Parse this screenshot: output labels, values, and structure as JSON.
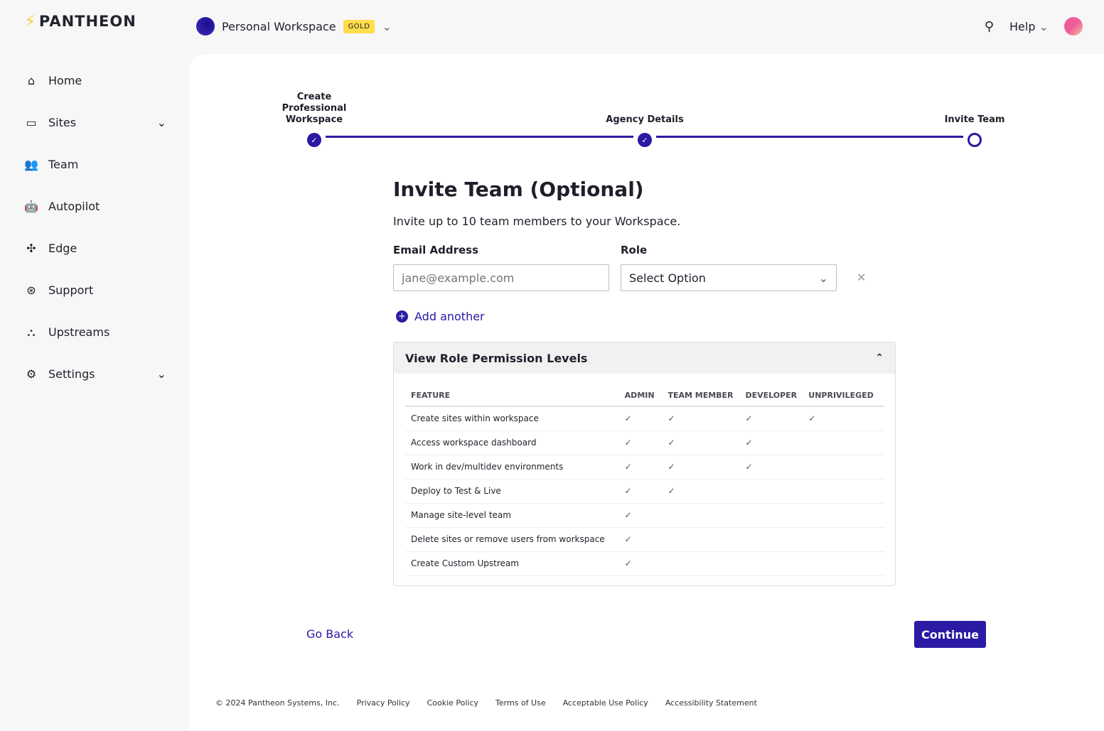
{
  "brand": {
    "name": "PANTHEON"
  },
  "workspace": {
    "name": "Personal Workspace",
    "badge": "GOLD"
  },
  "header": {
    "help": "Help"
  },
  "sidebar": {
    "items": [
      {
        "label": "Home",
        "icon": "⌂",
        "name": "home"
      },
      {
        "label": "Sites",
        "icon": "▭",
        "name": "sites",
        "chev": true
      },
      {
        "label": "Team",
        "icon": "👥",
        "name": "team"
      },
      {
        "label": "Autopilot",
        "icon": "🤖",
        "name": "autopilot"
      },
      {
        "label": "Edge",
        "icon": "✣",
        "name": "edge"
      },
      {
        "label": "Support",
        "icon": "⊛",
        "name": "support"
      },
      {
        "label": "Upstreams",
        "icon": "⛬",
        "name": "upstreams"
      },
      {
        "label": "Settings",
        "icon": "⚙",
        "name": "settings",
        "chev": true
      }
    ]
  },
  "stepper": {
    "steps": [
      {
        "label": "Create Professional Workspace",
        "done": true
      },
      {
        "label": "Agency Details",
        "done": true
      },
      {
        "label": "Invite Team",
        "done": false
      }
    ]
  },
  "form": {
    "title": "Invite Team (Optional)",
    "subtitle": "Invite up to 10 team members to your Workspace.",
    "email_label": "Email Address",
    "email_placeholder": "jane@example.com",
    "role_label": "Role",
    "role_value": "Select Option",
    "add_another": "Add another"
  },
  "permissions": {
    "title": "View Role Permission Levels",
    "columns": [
      "FEATURE",
      "ADMIN",
      "TEAM MEMBER",
      "DEVELOPER",
      "UNPRIVILEGED"
    ],
    "rows": [
      [
        "Create sites within workspace",
        true,
        true,
        true,
        true
      ],
      [
        "Access workspace dashboard",
        true,
        true,
        true,
        false
      ],
      [
        "Work in dev/multidev environments",
        true,
        true,
        true,
        false
      ],
      [
        "Deploy to Test & Live",
        true,
        true,
        false,
        false
      ],
      [
        "Manage site-level team",
        true,
        false,
        false,
        false
      ],
      [
        "Delete sites or remove users from workspace",
        true,
        false,
        false,
        false
      ],
      [
        "Create Custom Upstream",
        true,
        false,
        false,
        false
      ]
    ]
  },
  "actions": {
    "back": "Go Back",
    "continue": "Continue"
  },
  "footer": {
    "links": [
      "© 2024 Pantheon Systems, Inc.",
      "Privacy Policy",
      "Cookie Policy",
      "Terms of Use",
      "Acceptable Use Policy",
      "Accessibility Statement"
    ]
  }
}
